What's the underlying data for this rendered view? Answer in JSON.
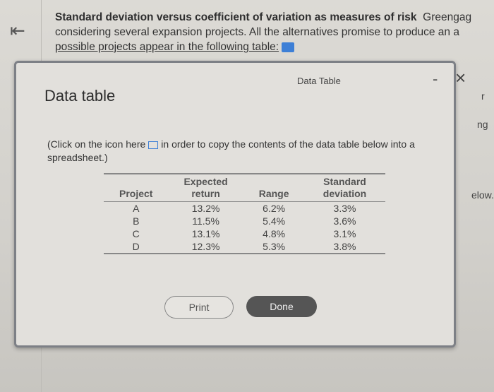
{
  "question": {
    "title": "Standard deviation versus coefficient of variation as measures of risk",
    "line1_rest": "Greengag",
    "line2": "considering several expansion projects.  All the alternatives promise to produce an a",
    "line3": "possible projects appear in the following table:"
  },
  "back_icon": "collapse-left-arrow-icon",
  "modal": {
    "title": "Data table",
    "tab_label": "Data Table",
    "minimize": "-",
    "close": "×",
    "instruction_before": "(Click on the icon here",
    "instruction_after": "in order to copy the contents of the data table below into a spreadsheet.)",
    "table": {
      "headers": [
        "Project",
        "Expected return",
        "Range",
        "Standard deviation"
      ],
      "rows": [
        [
          "A",
          "13.2%",
          "6.2%",
          "3.3%"
        ],
        [
          "B",
          "11.5%",
          "5.4%",
          "3.6%"
        ],
        [
          "C",
          "13.1%",
          "4.8%",
          "3.1%"
        ],
        [
          "D",
          "12.3%",
          "5.3%",
          "3.8%"
        ]
      ]
    },
    "print_label": "Print",
    "done_label": "Done"
  },
  "background_fragments": [
    "r",
    "ng",
    "elow."
  ]
}
